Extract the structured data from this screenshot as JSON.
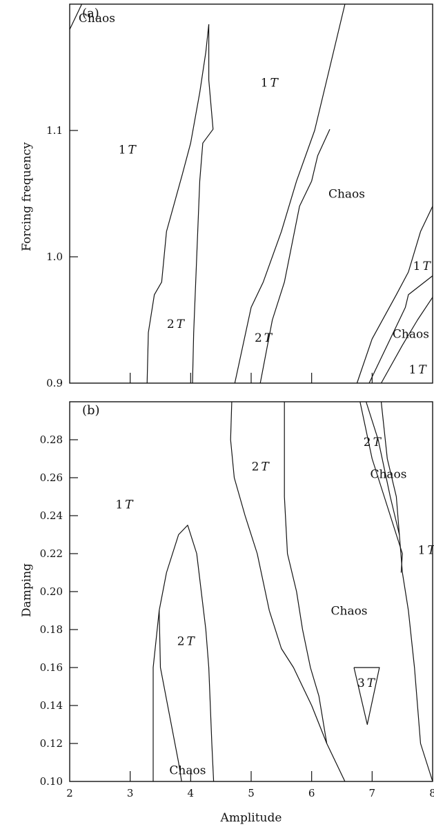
{
  "chart_data": [
    {
      "panel": "(a)",
      "type": "line",
      "xlabel": "Amplitude",
      "ylabel": "Forcing frequency",
      "xlim": [
        2,
        8
      ],
      "ylim": [
        0.9,
        1.2
      ],
      "xticks": [
        "2",
        "3",
        "4",
        "5",
        "6",
        "7",
        "8"
      ],
      "yticks": [
        {
          "value": 0.9,
          "label": "0.9"
        },
        {
          "value": 1.0,
          "label": "1.0"
        },
        {
          "value": 1.1,
          "label": "1.1"
        }
      ],
      "series": [
        {
          "points": [
            [
              3.28,
              0.9
            ],
            [
              3.3,
              0.94
            ],
            [
              3.4,
              0.97
            ],
            [
              3.52,
              0.98
            ],
            [
              3.6,
              1.02
            ],
            [
              3.86,
              1.065
            ],
            [
              4.0,
              1.09
            ],
            [
              4.15,
              1.13
            ],
            [
              4.25,
              1.162
            ],
            [
              4.3,
              1.184
            ]
          ]
        },
        {
          "points": [
            [
              4.3,
              1.184
            ],
            [
              4.3,
              1.14
            ],
            [
              4.37,
              1.101
            ],
            [
              4.2,
              1.09
            ],
            [
              4.15,
              1.06
            ],
            [
              4.1,
              1.0
            ],
            [
              4.05,
              0.94
            ],
            [
              4.03,
              0.9
            ]
          ]
        },
        {
          "points": [
            [
              4.73,
              0.9
            ],
            [
              5.0,
              0.96
            ],
            [
              5.2,
              0.98
            ],
            [
              5.5,
              1.02
            ],
            [
              5.75,
              1.06
            ],
            [
              6.05,
              1.1
            ],
            [
              6.3,
              1.15
            ],
            [
              6.55,
              1.2
            ]
          ]
        },
        {
          "points": [
            [
              5.15,
              0.9
            ],
            [
              5.35,
              0.95
            ],
            [
              5.55,
              0.98
            ],
            [
              5.8,
              1.04
            ],
            [
              6.0,
              1.06
            ],
            [
              6.1,
              1.08
            ],
            [
              6.3,
              1.101
            ]
          ]
        },
        {
          "points": [
            [
              6.75,
              0.9
            ],
            [
              7.0,
              0.935
            ],
            [
              7.4,
              0.97
            ],
            [
              7.6,
              0.988
            ],
            [
              7.8,
              1.02
            ],
            [
              8.0,
              1.04
            ]
          ]
        },
        {
          "points": [
            [
              6.95,
              0.9
            ],
            [
              7.15,
              0.92
            ],
            [
              7.45,
              0.95
            ],
            [
              7.55,
              0.96
            ],
            [
              7.6,
              0.97
            ],
            [
              8.0,
              0.985
            ]
          ]
        },
        {
          "points": [
            [
              7.15,
              0.9
            ],
            [
              7.5,
              0.93
            ],
            [
              7.75,
              0.95
            ],
            [
              8.0,
              0.968
            ]
          ]
        },
        {
          "points": [
            [
              2.0,
              1.18
            ],
            [
              2.1,
              1.19
            ],
            [
              2.2,
              1.2
            ]
          ]
        }
      ],
      "annotations": [
        {
          "text": "Chaos",
          "x": 2.45,
          "y": 1.189
        },
        {
          "text": "1",
          "italic_suffix": "T",
          "x": 2.95,
          "y": 1.085
        },
        {
          "text": "1",
          "italic_suffix": "T",
          "x": 5.3,
          "y": 1.138
        },
        {
          "text": "2",
          "italic_suffix": "T",
          "x": 3.75,
          "y": 0.947
        },
        {
          "text": "2",
          "italic_suffix": "T",
          "x": 5.2,
          "y": 0.936
        },
        {
          "text": "Chaos",
          "x": 6.58,
          "y": 1.05
        },
        {
          "text": "1",
          "italic_suffix": "T",
          "x": 7.82,
          "y": 0.993
        },
        {
          "text": "Chaos",
          "x": 7.64,
          "y": 0.939
        },
        {
          "text": "1",
          "italic_suffix": "T",
          "x": 7.75,
          "y": 0.911
        }
      ]
    },
    {
      "panel": "(b)",
      "type": "line",
      "xlabel": "Amplitude",
      "ylabel": "Damping",
      "xlim": [
        2,
        8
      ],
      "ylim": [
        0.1,
        0.3
      ],
      "xticks": [
        "2",
        "3",
        "4",
        "5",
        "6",
        "7",
        "8"
      ],
      "yticks": [
        {
          "value": 0.1,
          "label": "0.10"
        },
        {
          "value": 0.12,
          "label": "0.12"
        },
        {
          "value": 0.14,
          "label": "0.14"
        },
        {
          "value": 0.16,
          "label": "0.16"
        },
        {
          "value": 0.18,
          "label": "0.18"
        },
        {
          "value": 0.2,
          "label": "0.20"
        },
        {
          "value": 0.22,
          "label": "0.22"
        },
        {
          "value": 0.24,
          "label": "0.24"
        },
        {
          "value": 0.26,
          "label": "0.26"
        },
        {
          "value": 0.28,
          "label": "0.28"
        }
      ],
      "series": [
        {
          "points": [
            [
              3.38,
              0.1
            ],
            [
              3.38,
              0.16
            ],
            [
              3.48,
              0.19
            ],
            [
              3.6,
              0.21
            ],
            [
              3.8,
              0.23
            ],
            [
              3.95,
              0.235
            ],
            [
              4.1,
              0.22
            ],
            [
              4.25,
              0.18
            ],
            [
              4.3,
              0.16
            ],
            [
              4.35,
              0.12
            ],
            [
              4.38,
              0.1
            ]
          ]
        },
        {
          "points": [
            [
              3.48,
              0.19
            ],
            [
              3.5,
              0.16
            ],
            [
              3.62,
              0.14
            ],
            [
              3.8,
              0.11
            ],
            [
              3.85,
              0.1
            ]
          ]
        },
        {
          "points": [
            [
              4.68,
              0.3
            ],
            [
              4.66,
              0.28
            ],
            [
              4.72,
              0.26
            ],
            [
              4.9,
              0.24
            ],
            [
              5.1,
              0.22
            ],
            [
              5.3,
              0.19
            ],
            [
              5.5,
              0.17
            ],
            [
              5.7,
              0.16
            ],
            [
              5.85,
              0.15
            ],
            [
              6.0,
              0.14
            ],
            [
              6.25,
              0.12
            ],
            [
              6.55,
              0.1
            ]
          ]
        },
        {
          "points": [
            [
              5.55,
              0.3
            ],
            [
              5.55,
              0.25
            ],
            [
              5.6,
              0.22
            ],
            [
              5.75,
              0.2
            ],
            [
              5.85,
              0.18
            ],
            [
              5.98,
              0.16
            ],
            [
              6.12,
              0.145
            ],
            [
              6.25,
              0.12
            ]
          ]
        },
        {
          "points": [
            [
              6.8,
              0.3
            ],
            [
              7.0,
              0.27
            ],
            [
              7.2,
              0.25
            ],
            [
              7.4,
              0.23
            ],
            [
              7.5,
              0.22
            ],
            [
              7.48,
              0.21
            ]
          ]
        },
        {
          "points": [
            [
              6.9,
              0.3
            ],
            [
              7.1,
              0.28
            ],
            [
              7.3,
              0.25
            ],
            [
              7.45,
              0.23
            ]
          ]
        },
        {
          "points": [
            [
              7.15,
              0.3
            ],
            [
              7.25,
              0.27
            ],
            [
              7.4,
              0.25
            ],
            [
              7.5,
              0.21
            ],
            [
              7.6,
              0.19
            ],
            [
              7.7,
              0.16
            ],
            [
              7.8,
              0.12
            ],
            [
              8.0,
              0.1
            ]
          ]
        },
        {
          "points": [
            [
              6.7,
              0.16
            ],
            [
              7.12,
              0.16
            ],
            [
              6.92,
              0.13
            ],
            [
              6.7,
              0.16
            ]
          ]
        }
      ],
      "annotations": [
        {
          "text": "1",
          "italic_suffix": "T",
          "x": 2.9,
          "y": 0.246
        },
        {
          "text": "2",
          "italic_suffix": "T",
          "x": 5.15,
          "y": 0.266
        },
        {
          "text": "2",
          "italic_suffix": "T",
          "x": 3.92,
          "y": 0.174
        },
        {
          "text": "Chaos",
          "x": 3.95,
          "y": 0.106
        },
        {
          "text": "2",
          "italic_suffix": "T",
          "x": 7.0,
          "y": 0.279
        },
        {
          "text": "Chaos",
          "x": 7.27,
          "y": 0.262
        },
        {
          "text": "1",
          "italic_suffix": "T",
          "x": 7.9,
          "y": 0.222
        },
        {
          "text": "Chaos",
          "x": 6.62,
          "y": 0.19
        },
        {
          "text": "3",
          "italic_suffix": "T",
          "x": 6.9,
          "y": 0.152
        }
      ]
    }
  ]
}
